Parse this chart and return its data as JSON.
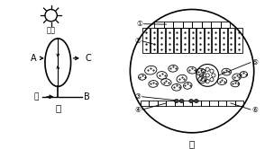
{
  "bg_color": "#ffffff",
  "title_jia": "甲",
  "title_yi": "乙",
  "sun_label": "阳光",
  "water_label": "水",
  "label_A": "A",
  "label_B": "B",
  "label_C": "C",
  "circle_labels": [
    "①",
    "②",
    "③",
    "④",
    "⑤",
    "⑥"
  ],
  "fig_width": 3.04,
  "fig_height": 1.66,
  "dpi": 100
}
